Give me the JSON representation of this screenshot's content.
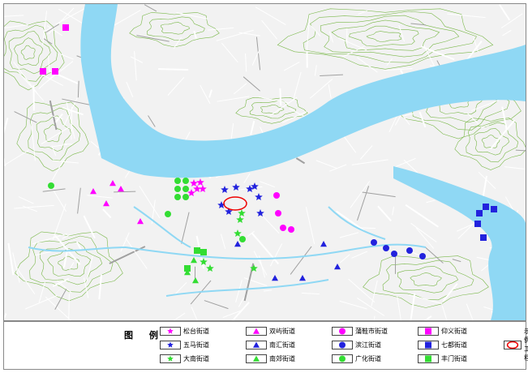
{
  "legend": {
    "title": "图 例",
    "items": [
      {
        "label": "松台街道",
        "shape": "star",
        "color": "#ff00ff"
      },
      {
        "label": "双屿街道",
        "shape": "triangle",
        "color": "#ff00ff"
      },
      {
        "label": "蒲鞋市街道",
        "shape": "circle",
        "color": "#ff00ff"
      },
      {
        "label": "仰义街道",
        "shape": "square",
        "color": "#ff00ff"
      },
      {
        "label": "示例工程",
        "shape": "ellipse",
        "color": "#ee0000"
      },
      {
        "label": "五马街道",
        "shape": "star",
        "color": "#2222dd"
      },
      {
        "label": "南汇街道",
        "shape": "triangle",
        "color": "#2222dd"
      },
      {
        "label": "滨江街道",
        "shape": "circle",
        "color": "#2222dd"
      },
      {
        "label": "七都街道",
        "shape": "square",
        "color": "#2222dd"
      },
      {
        "label": "大南街道",
        "shape": "star",
        "color": "#33dd33"
      },
      {
        "label": "南郊街道",
        "shape": "triangle",
        "color": "#33dd33"
      },
      {
        "label": "广化街道",
        "shape": "circle",
        "color": "#33dd33"
      },
      {
        "label": "丰门街道",
        "shape": "square",
        "color": "#33dd33"
      }
    ]
  },
  "colors": {
    "water": "#8fd8f4",
    "land": "#f2f2f2",
    "road": "#ffffff",
    "contour": "#7ab84a"
  }
}
